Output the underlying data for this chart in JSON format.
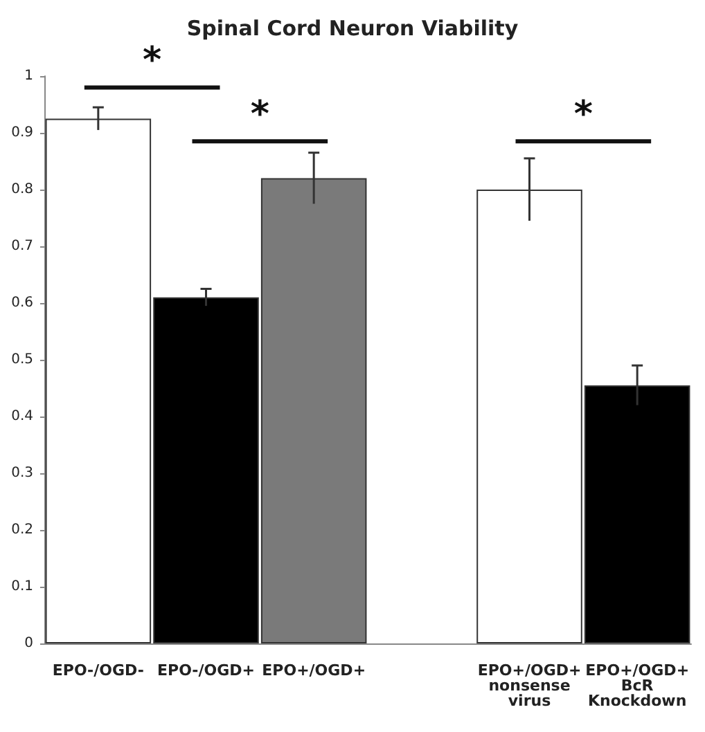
{
  "chart_data": {
    "type": "bar",
    "title": "Spinal Cord Neuron Viability",
    "categories": [
      "EPO-/OGD-",
      "EPO-/OGD+",
      "EPO+/OGD+",
      null,
      "EPO+/OGD+\nnonsense\nvirus",
      "EPO+/OGD+\nBcR\nKnockdown"
    ],
    "values": [
      0.925,
      0.61,
      0.82,
      null,
      0.8,
      0.455
    ],
    "errors": [
      0.02,
      0.015,
      0.045,
      null,
      0.055,
      0.035
    ],
    "colors": [
      "#ffffff",
      "#000000",
      "#7a7a7a",
      null,
      "#ffffff",
      "#000000"
    ],
    "ylim": [
      0,
      1
    ],
    "yticks": [
      0,
      0.1,
      0.2,
      0.3,
      0.4,
      0.5,
      0.6,
      0.7,
      0.8,
      0.9,
      1
    ],
    "annotations": [
      "*",
      "*",
      "*"
    ],
    "grid": false
  }
}
